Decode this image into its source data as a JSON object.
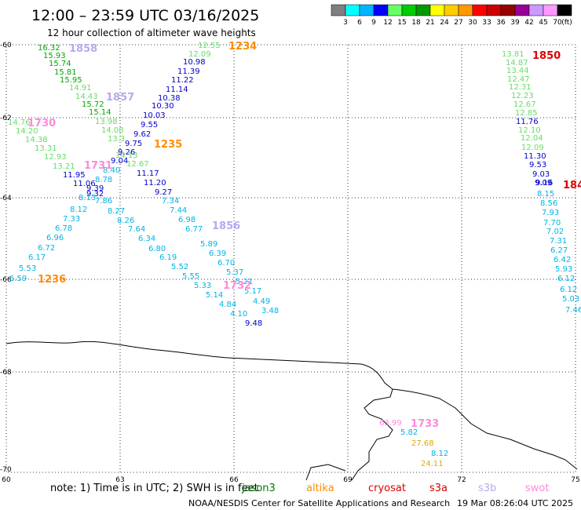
{
  "header": {
    "title": "12:00 – 23:59 UTC 03/16/2025",
    "subtitle": "12 hour collection of altimeter wave heights"
  },
  "legend": {
    "unit": "(ft)",
    "bins": [
      {
        "label": "3",
        "color": "#7f7f7f"
      },
      {
        "label": "6",
        "color": "#00ffff"
      },
      {
        "label": "9",
        "color": "#00b4ff"
      },
      {
        "label": "12",
        "color": "#0000ff"
      },
      {
        "label": "15",
        "color": "#66ff66"
      },
      {
        "label": "18",
        "color": "#00cc00"
      },
      {
        "label": "21",
        "color": "#009900"
      },
      {
        "label": "24",
        "color": "#ffff00"
      },
      {
        "label": "27",
        "color": "#ffcc00"
      },
      {
        "label": "30",
        "color": "#ff9900"
      },
      {
        "label": "33",
        "color": "#ff0000"
      },
      {
        "label": "36",
        "color": "#cc0000"
      },
      {
        "label": "39",
        "color": "#990000"
      },
      {
        "label": "42",
        "color": "#990099"
      },
      {
        "label": "45",
        "color": "#cc99ff"
      },
      {
        "label": "70",
        "color": "#ff99ff"
      },
      {
        "label": "",
        "color": "#000000"
      }
    ]
  },
  "axes": {
    "lat_ticks": [
      "-60",
      "-62",
      "-64",
      "-66",
      "-68",
      "-70"
    ],
    "lon_ticks": [
      "60",
      "63",
      "66",
      "69",
      "72",
      "75"
    ]
  },
  "colors": {
    "lt_green": "#66dd66",
    "green": "#00aa00",
    "blue": "#0000cc",
    "cyan": "#00b4e6",
    "orange": "#ff8c00",
    "lavender": "#b8a8f0",
    "pink": "#ff88dd",
    "red": "#dd0000",
    "gold": "#ddaa00",
    "dark_green": "#007700"
  },
  "tracks": [
    {
      "x": 0,
      "y": 0,
      "t": "16.32",
      "c": "green"
    },
    {
      "x": 0,
      "y": 0,
      "t": "15.93",
      "c": "green"
    },
    {
      "x": 0,
      "y": 0,
      "t": "15.74",
      "c": "green"
    },
    {
      "x": 0,
      "y": 0,
      "t": "15.81",
      "c": "green"
    },
    {
      "x": 0,
      "y": 0,
      "t": "15.95",
      "c": "green"
    },
    {
      "x": 0,
      "y": 0,
      "t": "14.91",
      "c": "lt_green"
    },
    {
      "x": 0,
      "y": 0,
      "t": "14.43",
      "c": "lt_green"
    },
    {
      "x": 0,
      "y": 0,
      "t": "15.72",
      "c": "green"
    },
    {
      "x": 0,
      "y": 0,
      "t": "15.14",
      "c": "green"
    },
    {
      "x": 0,
      "y": 0,
      "t": "13.98",
      "c": "lt_green"
    },
    {
      "x": 0,
      "y": 0,
      "t": "14.08",
      "c": "lt_green"
    },
    {
      "x": 0,
      "y": 0,
      "t": "13.3",
      "c": "lt_green"
    },
    {
      "x": 0,
      "y": 0,
      "t": "14.13",
      "c": "lt_green"
    },
    {
      "x": 0,
      "y": 0,
      "t": "12.67",
      "c": "lt_green"
    },
    {
      "x": 0,
      "y": 0,
      "t": "11.17",
      "c": "blue"
    },
    {
      "x": 0,
      "y": 0,
      "t": "11.20",
      "c": "blue"
    },
    {
      "x": 0,
      "y": 0,
      "t": "9.27",
      "c": "blue"
    },
    {
      "x": 0,
      "y": 0,
      "t": "7.34",
      "c": "cyan"
    },
    {
      "x": 0,
      "y": 0,
      "t": "7.44",
      "c": "cyan"
    },
    {
      "x": 0,
      "y": 0,
      "t": "6.98",
      "c": "cyan"
    },
    {
      "x": 0,
      "y": 0,
      "t": "6.77",
      "c": "cyan"
    },
    {
      "x": 0,
      "y": 0,
      "t": "5.89",
      "c": "cyan"
    },
    {
      "x": 0,
      "y": 0,
      "t": "6.39",
      "c": "cyan"
    },
    {
      "x": 0,
      "y": 0,
      "t": "6.70",
      "c": "cyan"
    },
    {
      "x": 0,
      "y": 0,
      "t": "5.37",
      "c": "cyan"
    },
    {
      "x": 0,
      "y": 0,
      "t": "5.21",
      "c": "cyan"
    },
    {
      "x": 0,
      "y": 0,
      "t": "5.17",
      "c": "cyan"
    },
    {
      "x": 0,
      "y": 0,
      "t": "4.49",
      "c": "cyan"
    },
    {
      "x": 0,
      "y": 0,
      "t": "3.48",
      "c": "cyan"
    },
    {
      "x": 0,
      "y": 0,
      "t": "12.55",
      "c": "lt_green"
    },
    {
      "x": 0,
      "y": 0,
      "t": "12.09",
      "c": "lt_green"
    },
    {
      "x": 0,
      "y": 0,
      "t": "10.98",
      "c": "blue"
    },
    {
      "x": 0,
      "y": 0,
      "t": "11.39",
      "c": "blue"
    },
    {
      "x": 0,
      "y": 0,
      "t": "11.22",
      "c": "blue"
    },
    {
      "x": 0,
      "y": 0,
      "t": "11.14",
      "c": "blue"
    },
    {
      "x": 0,
      "y": 0,
      "t": "10.38",
      "c": "blue"
    },
    {
      "x": 0,
      "y": 0,
      "t": "10.30",
      "c": "blue"
    },
    {
      "x": 0,
      "y": 0,
      "t": "10.03",
      "c": "blue"
    },
    {
      "x": 0,
      "y": 0,
      "t": "9.55",
      "c": "blue"
    },
    {
      "x": 0,
      "y": 0,
      "t": "9.62",
      "c": "blue"
    },
    {
      "x": 0,
      "y": 0,
      "t": "9.75",
      "c": "blue"
    },
    {
      "x": 0,
      "y": 0,
      "t": "9.26",
      "c": "blue"
    },
    {
      "x": 0,
      "y": 0,
      "t": "9.04",
      "c": "blue"
    },
    {
      "x": 0,
      "y": 0,
      "t": "8.40",
      "c": "cyan"
    },
    {
      "x": 0,
      "y": 0,
      "t": "8.78",
      "c": "cyan"
    },
    {
      "x": 0,
      "y": 0,
      "t": "9.39",
      "c": "blue"
    },
    {
      "x": 0,
      "y": 0,
      "t": "9.32",
      "c": "blue"
    },
    {
      "x": 0,
      "y": 0,
      "t": "8.13",
      "c": "cyan"
    },
    {
      "x": 0,
      "y": 0,
      "t": "7.86",
      "c": "cyan"
    },
    {
      "x": 0,
      "y": 0,
      "t": "8.12",
      "c": "cyan"
    },
    {
      "x": 0,
      "y": 0,
      "t": "7.33",
      "c": "cyan"
    },
    {
      "x": 0,
      "y": 0,
      "t": "6.78",
      "c": "cyan"
    },
    {
      "x": 0,
      "y": 0,
      "t": "6.96",
      "c": "cyan"
    },
    {
      "x": 0,
      "y": 0,
      "t": "6.72",
      "c": "cyan"
    },
    {
      "x": 0,
      "y": 0,
      "t": "6.17",
      "c": "cyan"
    },
    {
      "x": 0,
      "y": 0,
      "t": "5.53",
      "c": "cyan"
    },
    {
      "x": 0,
      "y": 0,
      "t": "6.59",
      "c": "cyan"
    },
    {
      "x": 0,
      "y": 0,
      "t": "14.76",
      "c": "lt_green"
    },
    {
      "x": 0,
      "y": 0,
      "t": "14.20",
      "c": "lt_green"
    },
    {
      "x": 0,
      "y": 0,
      "t": "14.38",
      "c": "lt_green"
    },
    {
      "x": 0,
      "y": 0,
      "t": "13.31",
      "c": "lt_green"
    },
    {
      "x": 0,
      "y": 0,
      "t": "12.93",
      "c": "lt_green"
    },
    {
      "x": 0,
      "y": 0,
      "t": "13.21",
      "c": "lt_green"
    },
    {
      "x": 0,
      "y": 0,
      "t": "11.95",
      "c": "blue"
    },
    {
      "x": 0,
      "y": 0,
      "t": "11.06",
      "c": "blue"
    },
    {
      "x": 0,
      "y": 0,
      "t": "8.27",
      "c": "cyan"
    },
    {
      "x": 0,
      "y": 0,
      "t": "8.26",
      "c": "cyan"
    },
    {
      "x": 0,
      "y": 0,
      "t": "7.64",
      "c": "cyan"
    },
    {
      "x": 0,
      "y": 0,
      "t": "6.34",
      "c": "cyan"
    },
    {
      "x": 0,
      "y": 0,
      "t": "6.80",
      "c": "cyan"
    },
    {
      "x": 0,
      "y": 0,
      "t": "6.19",
      "c": "cyan"
    },
    {
      "x": 0,
      "y": 0,
      "t": "5.52",
      "c": "cyan"
    },
    {
      "x": 0,
      "y": 0,
      "t": "5.55",
      "c": "cyan"
    },
    {
      "x": 0,
      "y": 0,
      "t": "5.33",
      "c": "cyan"
    },
    {
      "x": 0,
      "y": 0,
      "t": "5.14",
      "c": "cyan"
    },
    {
      "x": 0,
      "y": 0,
      "t": "4.84",
      "c": "cyan"
    },
    {
      "x": 0,
      "y": 0,
      "t": "4.10",
      "c": "cyan"
    },
    {
      "x": 0,
      "y": 0,
      "t": "9.48",
      "c": "blue"
    },
    {
      "x": 0,
      "y": 0,
      "t": "13.81",
      "c": "lt_green"
    },
    {
      "x": 0,
      "y": 0,
      "t": "14.87",
      "c": "lt_green"
    },
    {
      "x": 0,
      "y": 0,
      "t": "13.44",
      "c": "lt_green"
    },
    {
      "x": 0,
      "y": 0,
      "t": "12.47",
      "c": "lt_green"
    },
    {
      "x": 0,
      "y": 0,
      "t": "12.31",
      "c": "lt_green"
    },
    {
      "x": 0,
      "y": 0,
      "t": "12.23",
      "c": "lt_green"
    },
    {
      "x": 0,
      "y": 0,
      "t": "12.67",
      "c": "lt_green"
    },
    {
      "x": 0,
      "y": 0,
      "t": "12.85",
      "c": "lt_green"
    },
    {
      "x": 0,
      "y": 0,
      "t": "11.76",
      "c": "blue"
    },
    {
      "x": 0,
      "y": 0,
      "t": "12.10",
      "c": "lt_green"
    },
    {
      "x": 0,
      "y": 0,
      "t": "12.04",
      "c": "lt_green"
    },
    {
      "x": 0,
      "y": 0,
      "t": "12.09",
      "c": "lt_green"
    },
    {
      "x": 0,
      "y": 0,
      "t": "11.30",
      "c": "blue"
    },
    {
      "x": 0,
      "y": 0,
      "t": "9.53",
      "c": "blue"
    },
    {
      "x": 0,
      "y": 0,
      "t": "9.03",
      "c": "blue"
    },
    {
      "x": 0,
      "y": 0,
      "t": "9.09",
      "c": "blue"
    },
    {
      "x": 0,
      "y": 0,
      "t": "9.16",
      "c": "blue"
    },
    {
      "x": 0,
      "y": 0,
      "t": "8.15",
      "c": "cyan"
    },
    {
      "x": 0,
      "y": 0,
      "t": "8.56",
      "c": "cyan"
    },
    {
      "x": 0,
      "y": 0,
      "t": "7.93",
      "c": "cyan"
    },
    {
      "x": 0,
      "y": 0,
      "t": "7.70",
      "c": "cyan"
    },
    {
      "x": 0,
      "y": 0,
      "t": "7.02",
      "c": "cyan"
    },
    {
      "x": 0,
      "y": 0,
      "t": "7.31",
      "c": "cyan"
    },
    {
      "x": 0,
      "y": 0,
      "t": "6.27",
      "c": "cyan"
    },
    {
      "x": 0,
      "y": 0,
      "t": "6.42",
      "c": "cyan"
    },
    {
      "x": 0,
      "y": 0,
      "t": "5.93",
      "c": "cyan"
    },
    {
      "x": 0,
      "y": 0,
      "t": "6.12",
      "c": "cyan"
    },
    {
      "x": 0,
      "y": 0,
      "t": "6.12",
      "c": "cyan"
    },
    {
      "x": 0,
      "y": 0,
      "t": "5.03",
      "c": "cyan"
    },
    {
      "x": 0,
      "y": 0,
      "t": "7.46",
      "c": "cyan"
    },
    {
      "x": 0,
      "y": 0,
      "t": "63.99",
      "c": "pink"
    },
    {
      "x": 0,
      "y": 0,
      "t": "5.82",
      "c": "cyan"
    },
    {
      "x": 0,
      "y": 0,
      "t": "27.68",
      "c": "gold"
    },
    {
      "x": 0,
      "y": 0,
      "t": "8.12",
      "c": "cyan"
    },
    {
      "x": 0,
      "y": 0,
      "t": "24.11",
      "c": "gold"
    }
  ],
  "time_marks": [
    {
      "t": "1858",
      "c": "lavender"
    },
    {
      "t": "1857",
      "c": "lavender"
    },
    {
      "t": "1730",
      "c": "pink"
    },
    {
      "t": "1731",
      "c": "pink"
    },
    {
      "t": "1235",
      "c": "orange"
    },
    {
      "t": "1234",
      "c": "orange"
    },
    {
      "t": "1236",
      "c": "orange"
    },
    {
      "t": "1856",
      "c": "lavender"
    },
    {
      "t": "1732",
      "c": "pink"
    },
    {
      "t": "1850",
      "c": "red"
    },
    {
      "t": "184",
      "c": "red"
    },
    {
      "t": "1733",
      "c": "pink"
    }
  ],
  "footer": {
    "note": "note:  1) Time is in UTC; 2) SWH is in feet",
    "missions": [
      {
        "label": "jason3",
        "c": "dark_green"
      },
      {
        "label": "altika",
        "c": "orange"
      },
      {
        "label": "cryosat",
        "c": "red"
      },
      {
        "label": "s3a",
        "c": "red"
      },
      {
        "label": "s3b",
        "c": "lavender"
      },
      {
        "label": "swot",
        "c": "pink"
      }
    ],
    "credit": "NOAA/NESDIS Center for Satellite Applications and Research",
    "timestamp": "19 Mar 08:26:04 UTC 2025"
  }
}
